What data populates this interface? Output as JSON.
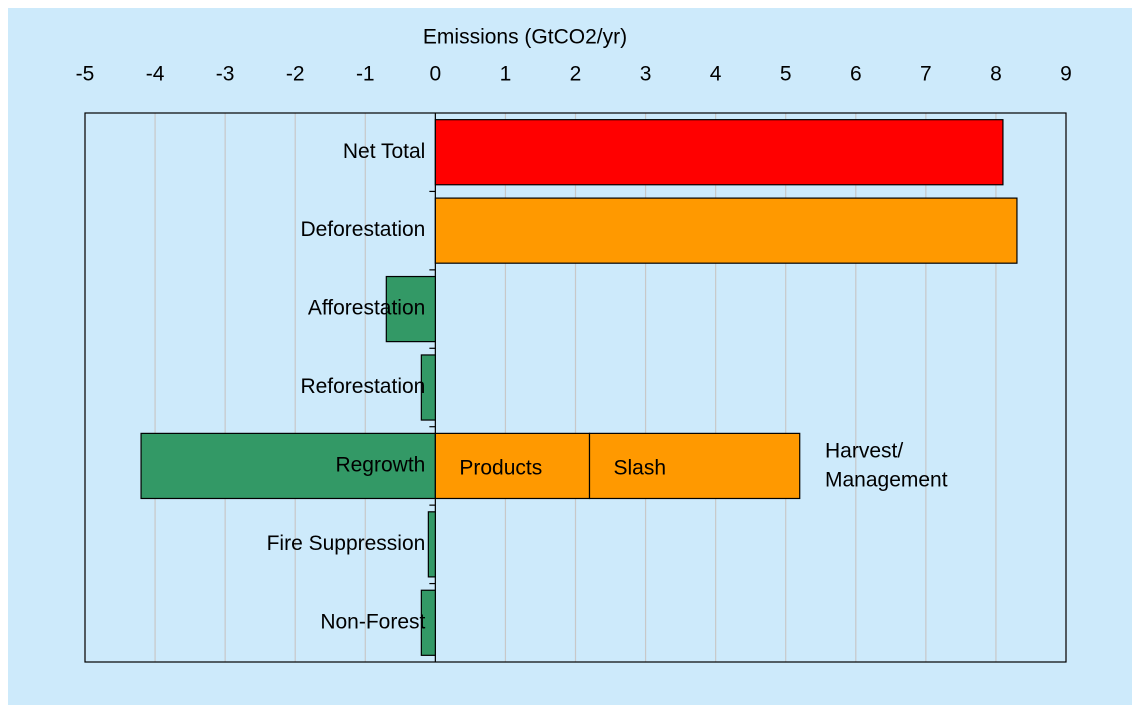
{
  "chart_data": {
    "type": "hbar",
    "x_axis_label": "Emissions (GtCO2/yr)",
    "categories": [
      "Net Total",
      "Deforestation",
      "Afforestation",
      "Reforestation",
      "Regrowth",
      "Fire Suppression",
      "Non-Forest"
    ],
    "values": [
      8.1,
      8.3,
      -0.7,
      -0.2,
      -4.2,
      -0.1,
      -0.2
    ],
    "colors": [
      "#ff0000",
      "#ff9900",
      "#339966",
      "#339966",
      "#339966",
      "#339966",
      "#339966"
    ],
    "series": [
      {
        "name": "Products",
        "color": "#ff9900",
        "values": [
          null,
          null,
          null,
          null,
          2.2,
          null,
          null
        ]
      },
      {
        "name": "Slash",
        "color": "#ff9900",
        "values": [
          null,
          null,
          null,
          null,
          3.0,
          null,
          null
        ]
      }
    ],
    "annotation_lines": [
      "Harvest/",
      "Management"
    ],
    "xlim": [
      -5,
      9
    ],
    "xticks": [
      -5,
      -4,
      -3,
      -2,
      -1,
      0,
      1,
      2,
      3,
      4,
      5,
      6,
      7,
      8,
      9
    ],
    "grid": true
  }
}
